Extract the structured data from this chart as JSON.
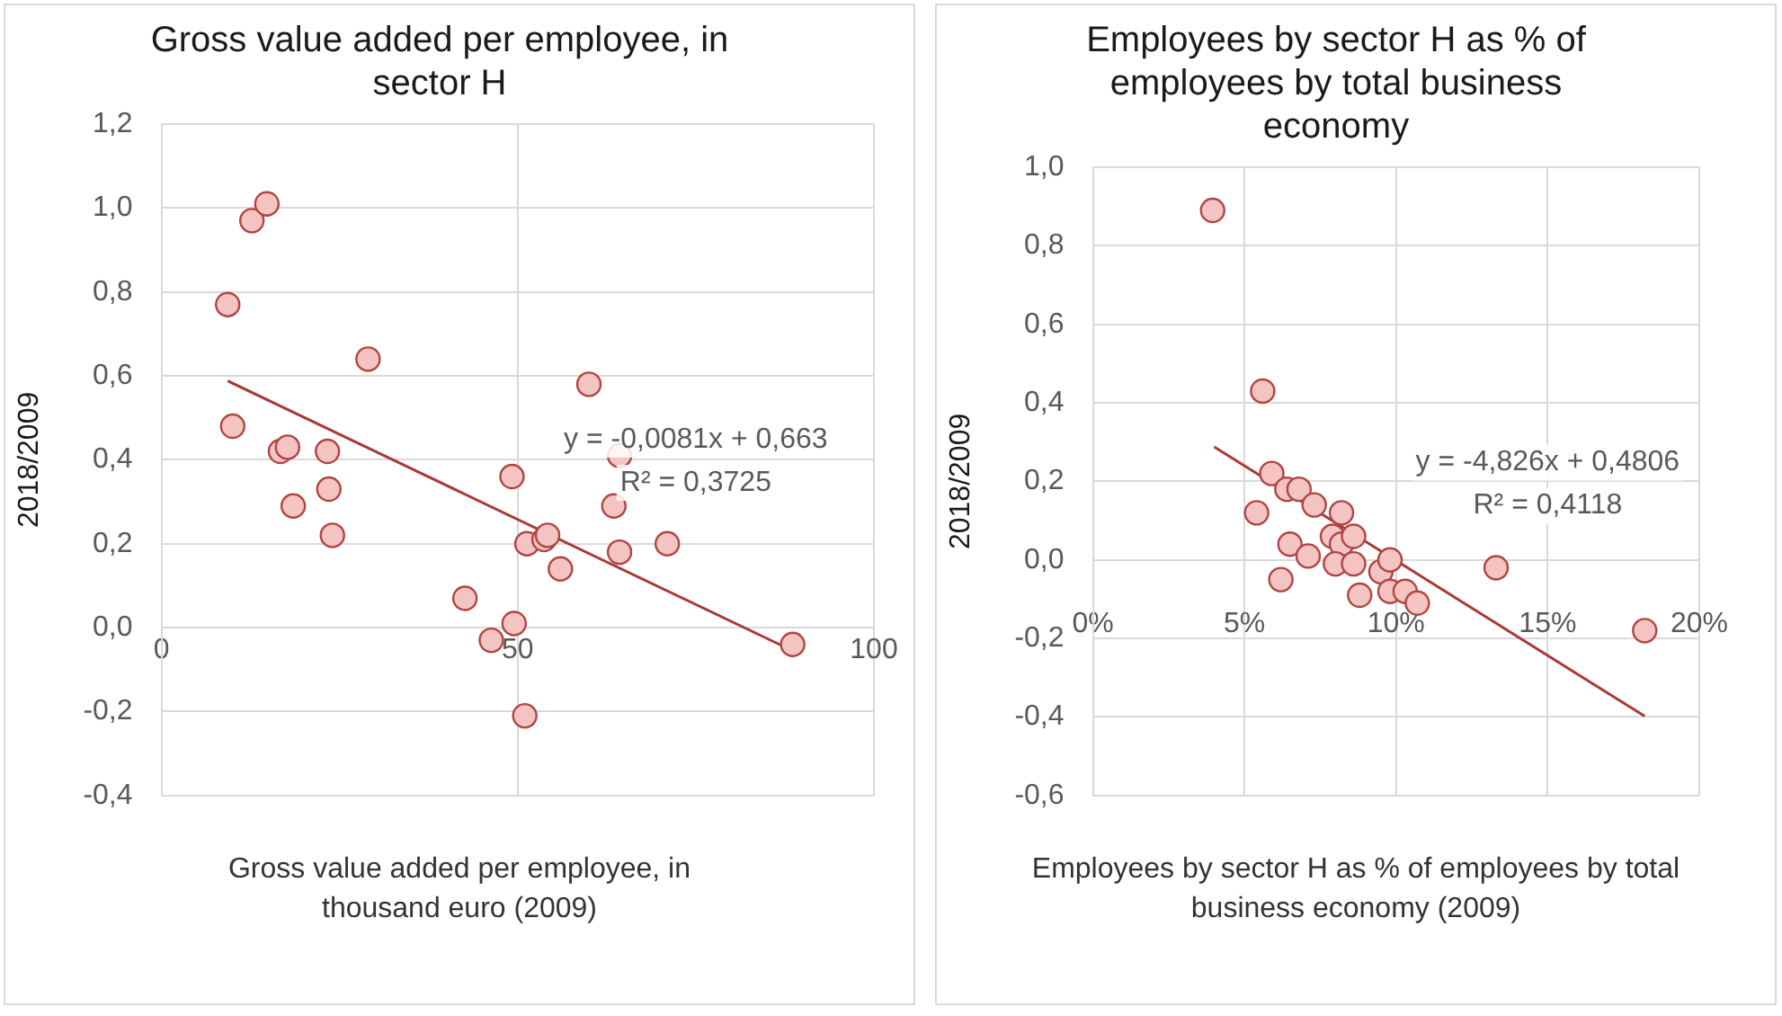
{
  "chart_data": [
    {
      "type": "scatter",
      "title": "Gross value added per employee, in sector H",
      "xlabel": "Gross value added per employee, in thousand euro (2009)",
      "ylabel": "2018/2009",
      "xlim": [
        0,
        100
      ],
      "xticks": [
        0,
        50,
        100
      ],
      "ylim": [
        -0.4,
        1.2
      ],
      "yticks": [
        {
          "value": -0.4,
          "label": "-0,4"
        },
        {
          "value": -0.2,
          "label": "-0,2"
        },
        {
          "value": 0,
          "label": "0,0"
        },
        {
          "value": 0.2,
          "label": "0,2"
        },
        {
          "value": 0.4,
          "label": "0,4"
        },
        {
          "value": 0.6,
          "label": "0,6"
        },
        {
          "value": 0.8,
          "label": "0,8"
        },
        {
          "value": 1.0,
          "label": "1,0"
        },
        {
          "value": 1.2,
          "label": "1,2"
        }
      ],
      "grid": true,
      "marker": "circle",
      "series": [
        {
          "type": "scatter",
          "color": "#f4c4c2",
          "x": [
            9.3,
            10,
            12.7,
            14.8,
            16.7,
            17.7,
            18.5,
            23.3,
            23.5,
            24,
            29,
            42.6,
            46.3,
            49.2,
            49.5,
            51,
            51.3,
            53.7,
            54.2,
            56,
            60,
            64.3,
            63.5,
            64.3,
            71,
            88.6
          ],
          "values": [
            0.77,
            0.48,
            0.97,
            1.01,
            0.42,
            0.43,
            0.29,
            0.42,
            0.33,
            0.22,
            0.64,
            0.07,
            -0.03,
            0.36,
            0.01,
            -0.21,
            0.2,
            0.21,
            0.22,
            0.14,
            0.58,
            0.41,
            0.29,
            0.18,
            0.2,
            -0.04
          ]
        },
        {
          "type": "line",
          "color": "#a83a36",
          "marker": "none",
          "x": [
            9.3,
            88.6
          ],
          "values": [
            0.588,
            -0.055
          ]
        }
      ],
      "annotations": [
        "y = -0,0081x + 0,663",
        "R² = 0,3725"
      ]
    },
    {
      "type": "scatter",
      "title": "Employees by sector H as % of employees by total business economy",
      "xlabel": "Employees by sector H as % of employees by total business economy (2009)",
      "ylabel": "2018/2009",
      "xlim": [
        0,
        0.2
      ],
      "xticks": [
        {
          "value": 0,
          "label": "0%"
        },
        {
          "value": 0.05,
          "label": "5%"
        },
        {
          "value": 0.1,
          "label": "10%"
        },
        {
          "value": 0.15,
          "label": "15%"
        },
        {
          "value": 0.2,
          "label": "20%"
        }
      ],
      "ylim": [
        -0.6,
        1.0
      ],
      "yticks": [
        {
          "value": -0.6,
          "label": "-0,6"
        },
        {
          "value": -0.4,
          "label": "-0,4"
        },
        {
          "value": -0.2,
          "label": "-0,2"
        },
        {
          "value": 0,
          "label": "0,0"
        },
        {
          "value": 0.2,
          "label": "0,2"
        },
        {
          "value": 0.4,
          "label": "0,4"
        },
        {
          "value": 0.6,
          "label": "0,6"
        },
        {
          "value": 0.8,
          "label": "0,8"
        },
        {
          "value": 1.0,
          "label": "1,0"
        }
      ],
      "grid": true,
      "marker": "circle",
      "series": [
        {
          "type": "scatter",
          "color": "#f4c4c2",
          "x": [
            0.0395,
            0.056,
            0.059,
            0.054,
            0.064,
            0.068,
            0.073,
            0.065,
            0.071,
            0.062,
            0.082,
            0.079,
            0.082,
            0.086,
            0.08,
            0.086,
            0.088,
            0.095,
            0.098,
            0.098,
            0.103,
            0.107,
            0.133,
            0.182
          ],
          "values": [
            0.89,
            0.43,
            0.22,
            0.12,
            0.18,
            0.18,
            0.14,
            0.04,
            0.01,
            -0.05,
            0.12,
            0.06,
            0.04,
            0.06,
            -0.01,
            -0.01,
            -0.09,
            -0.03,
            0,
            -0.08,
            -0.08,
            -0.11,
            -0.02,
            -0.18
          ]
        },
        {
          "type": "line",
          "color": "#a83a36",
          "marker": "none",
          "x": [
            0.04,
            0.182
          ],
          "values": [
            0.288,
            -0.398
          ]
        }
      ],
      "annotations": [
        "y = -4,826x + 0,4806",
        "R² = 0,4118"
      ]
    }
  ]
}
